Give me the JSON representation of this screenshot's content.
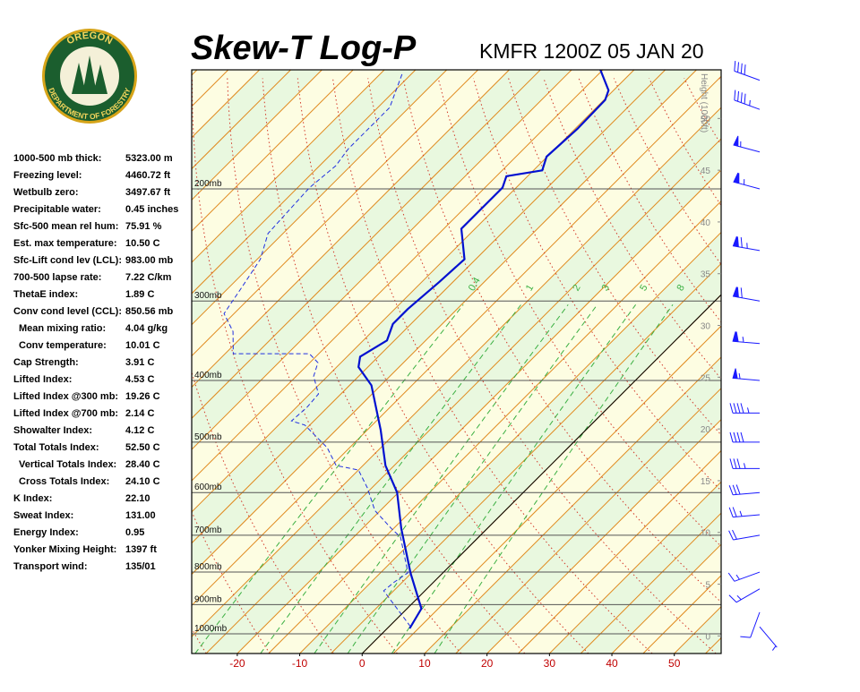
{
  "header": {
    "title": "Skew-T Log-P",
    "subtitle": "KMFR 1200Z 05 JAN 20"
  },
  "logo": {
    "top": "OREGON",
    "bottom": "DEPARTMENT OF FORESTRY"
  },
  "stats": [
    [
      "1000-500 mb thick:",
      "5323.00 m"
    ],
    [
      "Freezing level:",
      "4460.72 ft"
    ],
    [
      "Wetbulb zero:",
      "3497.67 ft"
    ],
    [
      "Precipitable water:",
      "0.45 inches"
    ],
    [
      "Sfc-500 mean rel hum:",
      "75.91 %"
    ],
    [
      "Est. max temperature:",
      "10.50 C"
    ],
    [
      "Sfc-Lift cond lev (LCL):",
      "983.00 mb"
    ],
    [
      "700-500 lapse rate:",
      "7.22 C/km"
    ],
    [
      "ThetaE index:",
      "1.89 C"
    ],
    [
      "Conv cond level (CCL):",
      "850.56 mb"
    ],
    [
      "Mean mixing ratio:",
      "4.04 g/kg"
    ],
    [
      "Conv temperature:",
      "10.01 C"
    ],
    [
      "Cap Strength:",
      "3.91 C"
    ],
    [
      "Lifted Index:",
      "4.53 C"
    ],
    [
      "Lifted Index @300 mb:",
      "19.26 C"
    ],
    [
      "Lifted Index @700 mb:",
      "2.14 C"
    ],
    [
      "Showalter Index:",
      "4.12 C"
    ],
    [
      "Total Totals Index:",
      "52.50 C"
    ],
    [
      "Vertical Totals Index:",
      "28.40 C"
    ],
    [
      "Cross Totals Index:",
      "24.10 C"
    ],
    [
      "K Index:",
      "22.10"
    ],
    [
      "Sweat Index:",
      "131.00"
    ],
    [
      "Energy Index:",
      "0.95"
    ],
    [
      "Yonker Mixing Height:",
      "1397 ft"
    ],
    [
      "Transport wind:",
      "135/01"
    ]
  ],
  "chart_data": {
    "type": "skewt",
    "xlim": [
      -27.3,
      57.5
    ],
    "xticks": [
      -20,
      -10,
      0,
      10,
      20,
      30,
      40,
      50
    ],
    "ylim": [
      1074,
      130
    ],
    "log_scale": true,
    "yticks": [
      {
        "value": 1000,
        "label": "1000mb"
      },
      {
        "value": 900,
        "label": "900mb"
      },
      {
        "value": 800,
        "label": "800mb"
      },
      {
        "value": 700,
        "label": "700mb"
      },
      {
        "value": 600,
        "label": "600mb"
      },
      {
        "value": 500,
        "label": "500mb"
      },
      {
        "value": 400,
        "label": "400mb"
      },
      {
        "value": 300,
        "label": "300mb"
      },
      {
        "value": 200,
        "label": "200mb"
      }
    ],
    "y2_label": "Height (1000ft)",
    "y2lim": [
      -1.7,
      54.7
    ],
    "y2ticks": [
      0,
      5,
      10,
      15,
      20,
      25,
      30,
      35,
      40,
      45,
      50
    ],
    "mixing_ratio_labels": [
      0.4,
      1,
      2,
      3,
      5,
      8
    ],
    "series": [
      {
        "color": "#0010d0",
        "style": "solid",
        "pressure": [
          981,
          913,
          802,
          683,
          600,
          544,
          478,
          407,
          381,
          367,
          346,
          326,
          309,
          280,
          258,
          231,
          213,
          199,
          191,
          187,
          178,
          161,
          145,
          140,
          130
        ],
        "values": [
          3.6,
          2.3,
          -5.2,
          -13.8,
          -20.2,
          -26.4,
          -32.9,
          -41.5,
          -46.5,
          -47.9,
          -46.2,
          -47.9,
          -47.9,
          -47.2,
          -46.8,
          -52.2,
          -52.2,
          -52.2,
          -53.4,
          -48.6,
          -50.1,
          -49.6,
          -49.8,
          -50.8,
          -55.4
        ]
      },
      {
        "color": "#2030e0",
        "style": "dashed",
        "pressure": [
          974,
          943,
          856,
          829,
          802,
          705,
          683,
          640,
          590,
          553,
          544,
          510,
          470,
          463,
          441,
          420,
          394,
          375,
          363,
          363,
          335,
          314,
          285,
          258,
          235,
          199,
          184,
          173,
          149,
          131
        ],
        "values": [
          3.4,
          0.9,
          -6.6,
          -6.3,
          -5.6,
          -12.5,
          -15.4,
          -20.9,
          -25.7,
          -30.0,
          -34.3,
          -38.6,
          -45.8,
          -48.6,
          -48.3,
          -48.6,
          -52.2,
          -53.7,
          -56.5,
          -68.7,
          -72.3,
          -76.6,
          -78.0,
          -79.5,
          -82.4,
          -83.1,
          -82.4,
          -83.1,
          -83.1,
          -86.7
        ]
      }
    ],
    "winds": {
      "pressure": [
        975,
        925,
        850,
        800,
        700,
        650,
        600,
        550,
        500,
        450,
        400,
        350,
        300,
        250,
        200,
        175,
        150,
        135
      ],
      "direction": [
        140,
        200,
        240,
        250,
        260,
        265,
        265,
        270,
        270,
        270,
        275,
        275,
        280,
        280,
        285,
        285,
        290,
        290
      ],
      "speed": [
        5,
        10,
        15,
        15,
        20,
        25,
        30,
        35,
        40,
        45,
        55,
        65,
        70,
        75,
        65,
        55,
        45,
        40
      ]
    }
  }
}
